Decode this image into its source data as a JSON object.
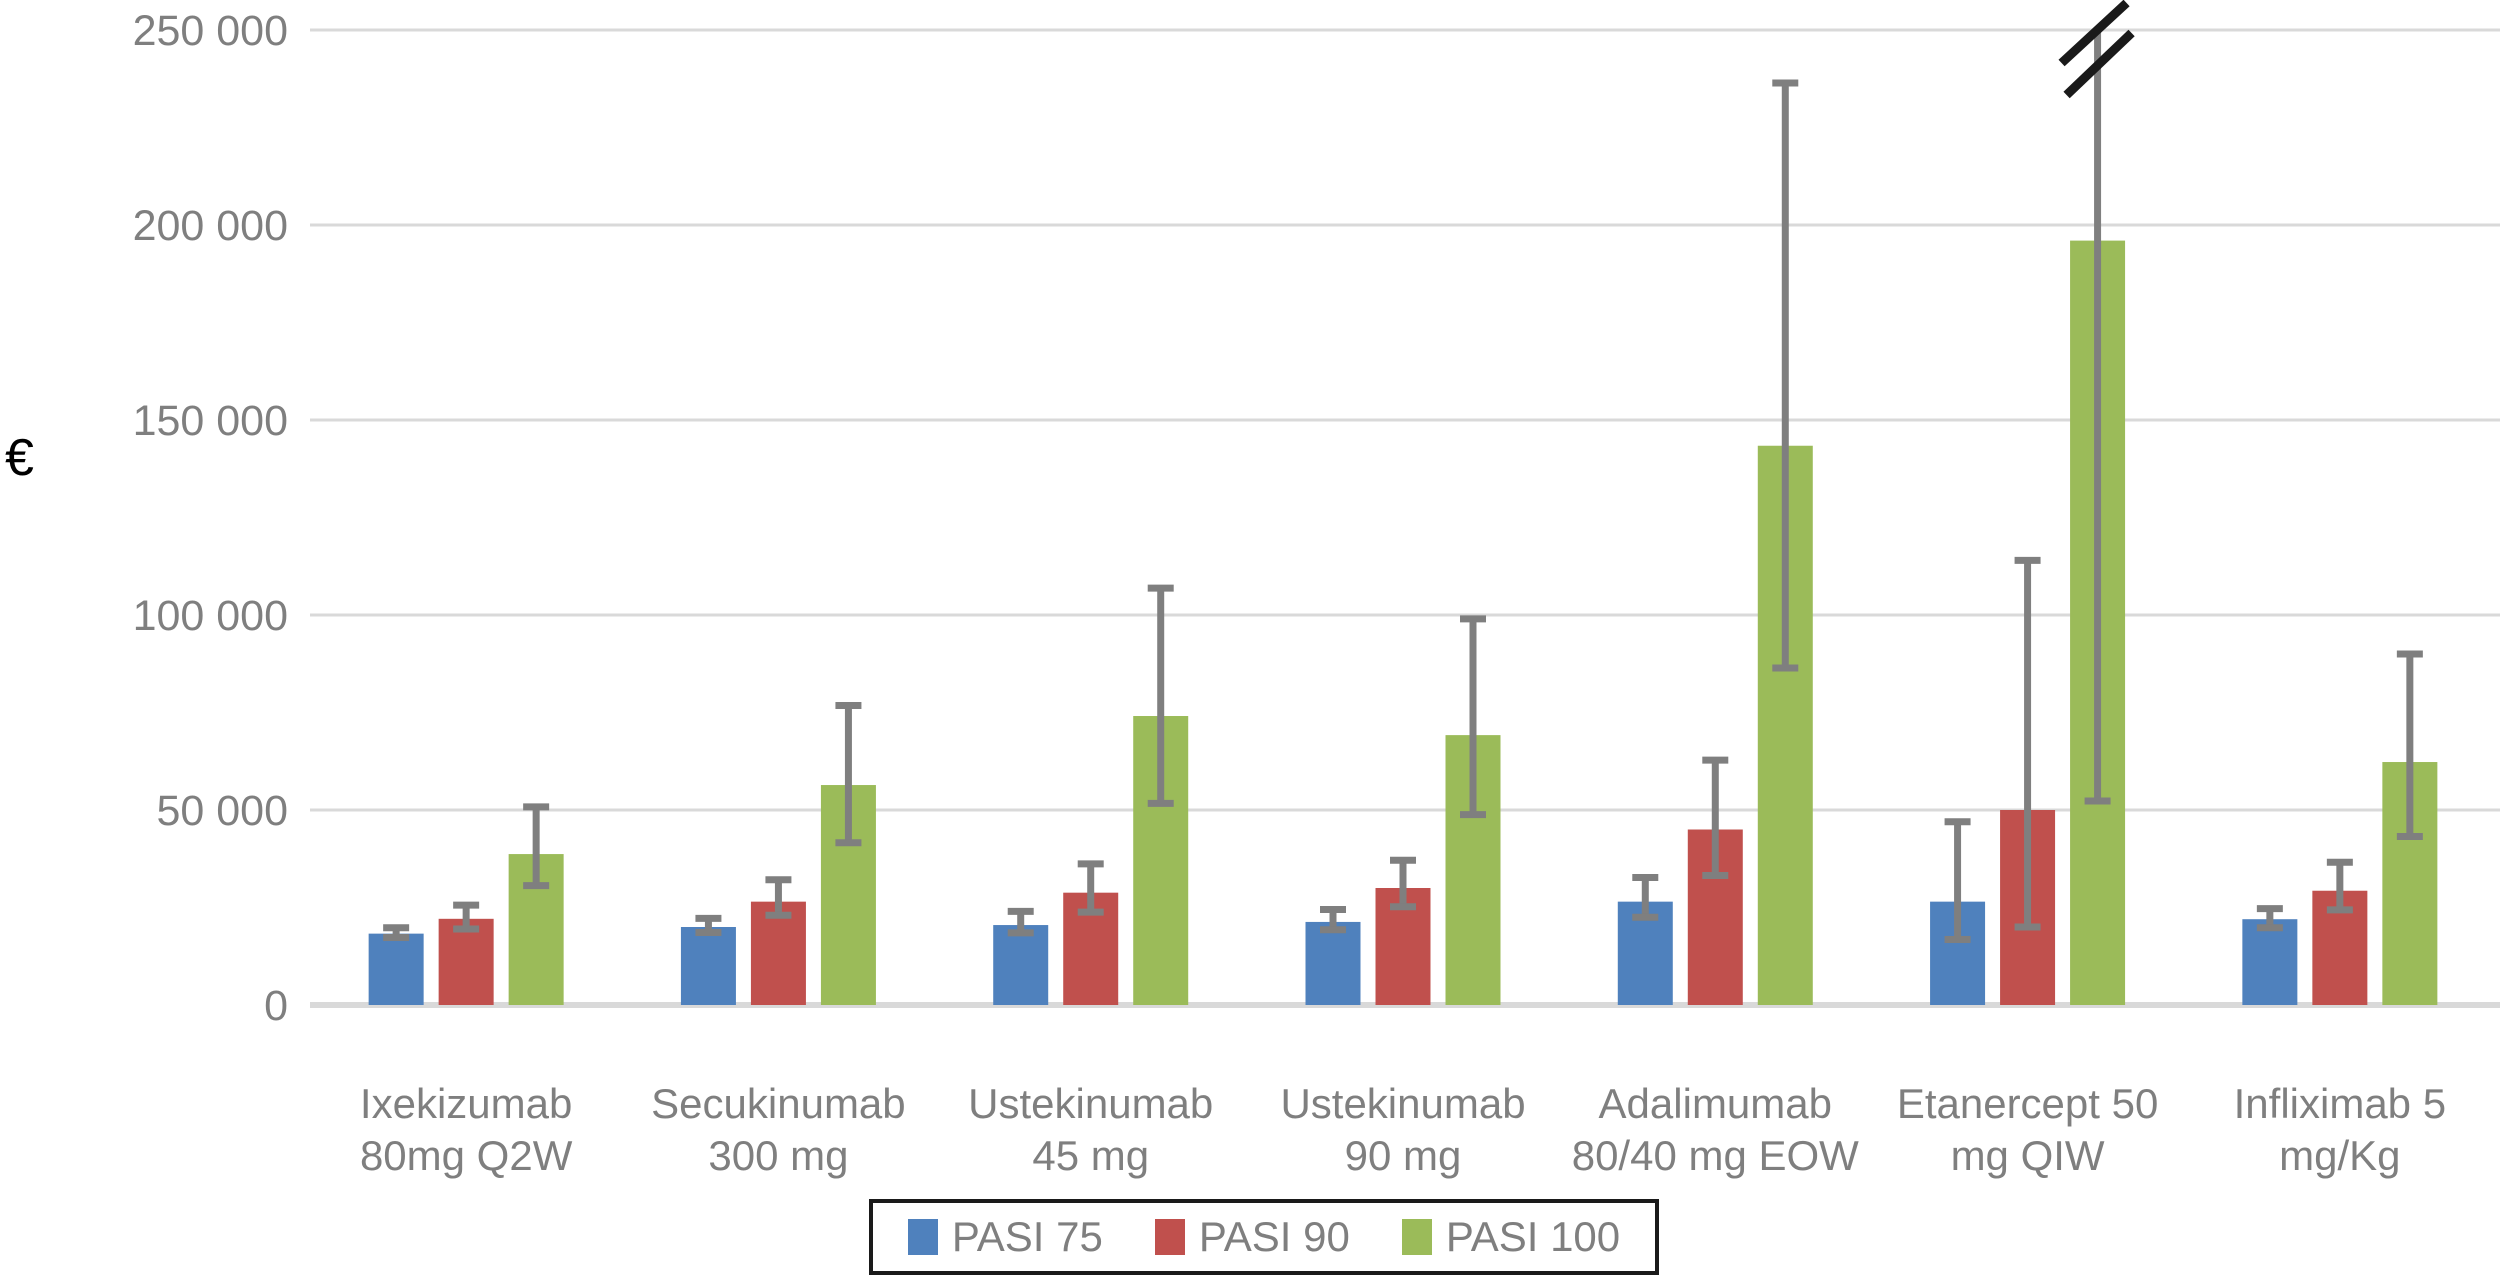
{
  "chart_data": {
    "type": "bar",
    "ylabel": "€",
    "ylim": [
      0,
      250000
    ],
    "grid": true,
    "legend_position": "bottom-center-boxed",
    "yticks": [
      {
        "value": 0,
        "label": "0"
      },
      {
        "value": 50000,
        "label": "50 000"
      },
      {
        "value": 100000,
        "label": "100 000"
      },
      {
        "value": 150000,
        "label": "150 000"
      },
      {
        "value": 200000,
        "label": "200 000"
      },
      {
        "value": 250000,
        "label": "250 000"
      }
    ],
    "categories": [
      [
        "Ixekizumab",
        "80mg Q2W"
      ],
      [
        "Secukinumab",
        "300 mg"
      ],
      [
        "Ustekinumab",
        "45 mg"
      ],
      [
        "Ustekinumab",
        "90 mg"
      ],
      [
        "Adalimumab",
        "80/40 mg EOW"
      ],
      [
        "Etanercept 50",
        "mg QIW"
      ],
      [
        "Infliximab 5",
        "mg/Kg"
      ]
    ],
    "series": [
      {
        "name": "PASI 75",
        "color": "#4f81bd",
        "values": [
          18300,
          20000,
          20500,
          21300,
          26500,
          26500,
          22000
        ],
        "error_low": [
          17300,
          18600,
          18500,
          19300,
          22500,
          16800,
          19800
        ],
        "error_high": [
          19800,
          22200,
          24000,
          24500,
          32700,
          47000,
          24700
        ],
        "error_high_truncated": [
          false,
          false,
          false,
          false,
          false,
          false,
          false
        ]
      },
      {
        "name": "PASI 90",
        "color": "#c0504d",
        "values": [
          22100,
          26500,
          28800,
          30000,
          45000,
          50000,
          29300
        ],
        "error_low": [
          19500,
          23000,
          23800,
          25200,
          33200,
          20000,
          24400
        ],
        "error_high": [
          25600,
          32100,
          36200,
          37100,
          62800,
          114000,
          36600
        ],
        "error_high_truncated": [
          false,
          false,
          false,
          false,
          false,
          false,
          false
        ]
      },
      {
        "name": "PASI 100",
        "color": "#9bbb59",
        "values": [
          38700,
          56400,
          74100,
          69200,
          143400,
          196000,
          62300
        ],
        "error_low": [
          30600,
          41600,
          51700,
          48800,
          86400,
          52300,
          43200
        ],
        "error_high": [
          50800,
          76800,
          106900,
          99000,
          236400,
          250000,
          90000
        ],
        "error_high_truncated": [
          false,
          false,
          false,
          false,
          false,
          true,
          false
        ]
      }
    ],
    "axis_break": {
      "series": "PASI 100",
      "category_index": 5,
      "meaning": "upper error bar exceeds the 250 000 axis maximum"
    }
  },
  "colors": {
    "gridline": "#d9d9d9",
    "baseline": "#d9d9d9",
    "error_bar": "#7f7f7f",
    "axis_text": "#7f7f7f",
    "unit_text": "#000000",
    "break_mark": "#1a1a1a",
    "legend_border": "#1a1a1a",
    "background": "#ffffff"
  }
}
